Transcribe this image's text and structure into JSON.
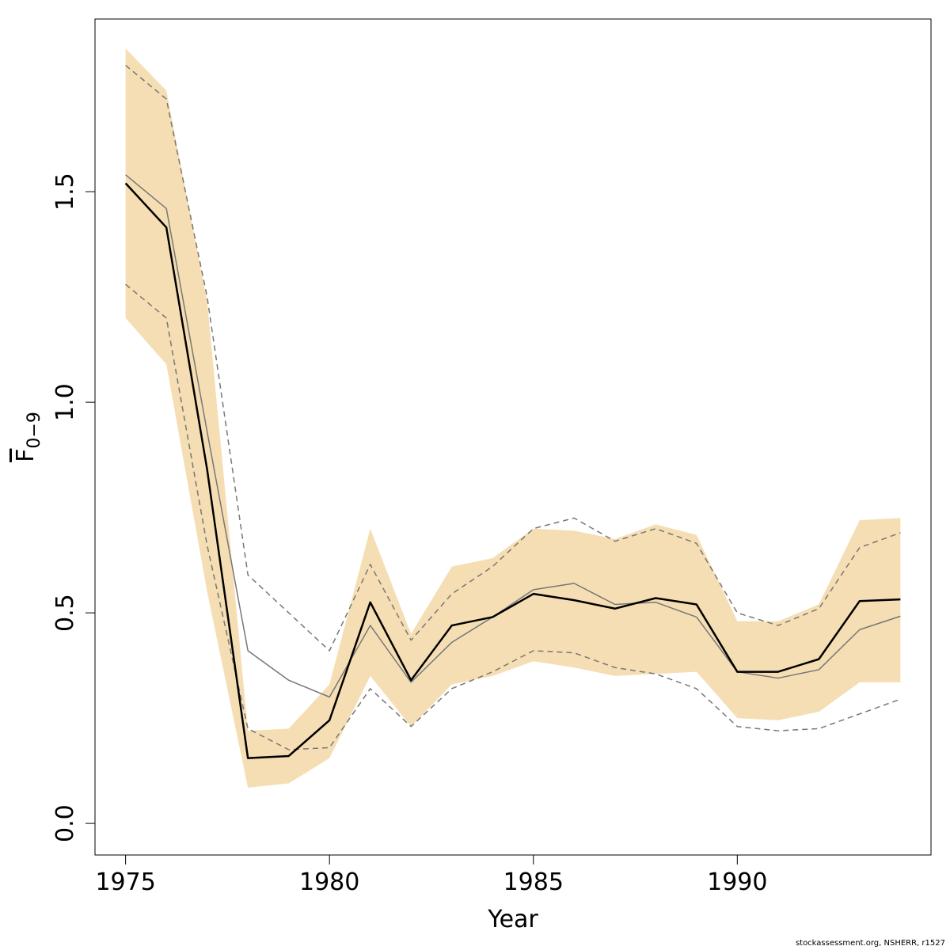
{
  "chart_data": {
    "type": "line",
    "title": "",
    "xlabel": "Year",
    "ylabel": {
      "base": "F",
      "subscript": "0−9"
    },
    "xlim": [
      1974.25,
      1994.75
    ],
    "ylim": [
      -0.075,
      1.91
    ],
    "xticks": [
      1975,
      1980,
      1985,
      1990
    ],
    "xtick_labels": [
      "1975",
      "1980",
      "1985",
      "1990"
    ],
    "yticks": [
      0.0,
      0.5,
      1.0,
      1.5
    ],
    "ytick_labels": [
      "0.0",
      "0.5",
      "1.0",
      "1.5"
    ],
    "grid": false,
    "x": [
      1975,
      1976,
      1977,
      1978,
      1979,
      1980,
      1981,
      1982,
      1983,
      1984,
      1985,
      1986,
      1987,
      1988,
      1989,
      1990,
      1991,
      1992,
      1993,
      1994
    ],
    "band": {
      "color": "#F5DEB3",
      "lower": [
        1.2,
        1.09,
        0.55,
        0.085,
        0.095,
        0.155,
        0.35,
        0.23,
        0.33,
        0.35,
        0.385,
        0.37,
        0.35,
        0.355,
        0.36,
        0.25,
        0.245,
        0.265,
        0.335,
        0.335
      ],
      "upper": [
        1.84,
        1.74,
        1.24,
        0.22,
        0.225,
        0.33,
        0.7,
        0.45,
        0.61,
        0.63,
        0.7,
        0.695,
        0.675,
        0.71,
        0.685,
        0.48,
        0.48,
        0.52,
        0.72,
        0.725
      ]
    },
    "series": [
      {
        "style": "solid",
        "color": "#000000",
        "width": 2.5,
        "values": [
          1.52,
          1.415,
          0.84,
          0.155,
          0.16,
          0.245,
          0.525,
          0.34,
          0.47,
          0.49,
          0.545,
          0.53,
          0.51,
          0.535,
          0.52,
          0.36,
          0.36,
          0.39,
          0.528,
          0.532
        ]
      },
      {
        "style": "solid",
        "color": "#777777",
        "width": 1.5,
        "values": [
          1.54,
          1.46,
          0.93,
          0.41,
          0.34,
          0.3,
          0.47,
          0.335,
          0.43,
          0.49,
          0.555,
          0.57,
          0.52,
          0.525,
          0.49,
          0.36,
          0.345,
          0.365,
          0.46,
          0.492
        ]
      },
      {
        "style": "dashed",
        "color": "#777777",
        "width": 1.5,
        "values": [
          1.8,
          1.72,
          1.25,
          0.59,
          0.5,
          0.41,
          0.615,
          0.435,
          0.545,
          0.61,
          0.7,
          0.725,
          0.67,
          0.7,
          0.665,
          0.5,
          0.47,
          0.51,
          0.655,
          0.69
        ]
      },
      {
        "style": "dashed",
        "color": "#777777",
        "width": 1.5,
        "values": [
          1.28,
          1.2,
          0.66,
          0.225,
          0.175,
          0.18,
          0.32,
          0.23,
          0.32,
          0.36,
          0.41,
          0.405,
          0.37,
          0.355,
          0.32,
          0.23,
          0.22,
          0.225,
          0.26,
          0.295
        ]
      }
    ]
  },
  "credit": "stockassessment.org, NSHERR, r1527"
}
